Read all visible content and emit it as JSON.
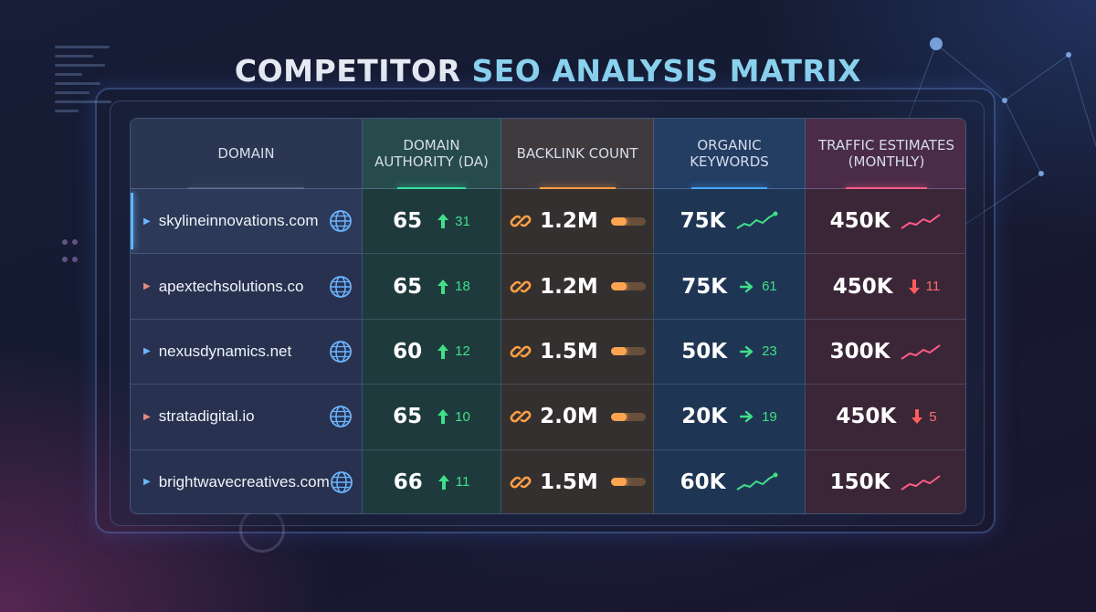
{
  "title": {
    "part1": "COMPETITOR ",
    "part2": "SEO ANALYSIS MATRIX"
  },
  "colors": {
    "accent": "#8ad2ee",
    "up": "#3fe088",
    "down": "#ff6d6d",
    "backlink": "#ffa552",
    "keywords": "#48a6ff",
    "traffic": "#ff5c86"
  },
  "columns": [
    {
      "label": "DOMAIN"
    },
    {
      "label": "DOMAIN AUTHORITY (DA)"
    },
    {
      "label": "BACKLINK COUNT"
    },
    {
      "label": "ORGANIC KEYWORDS"
    },
    {
      "label": "TRAFFIC ESTIMATES (MONTHLY)"
    }
  ],
  "rows": [
    {
      "domain": "skylineinnovations.com",
      "domain_icon": "globe-icon",
      "selected": true,
      "da": "65",
      "da_trend": "up",
      "da_delta": "31",
      "backlinks": "1.2M",
      "backlink_icon": "link-icon",
      "backlink_meter": 0.45,
      "keywords": "75K",
      "keywords_trend": "sparkline-up",
      "keywords_delta": "",
      "traffic": "450K",
      "traffic_trend": "sparkline-up",
      "traffic_delta": ""
    },
    {
      "domain": "apextechsolutions.co",
      "domain_icon": "globe-icon",
      "selected": false,
      "da": "65",
      "da_trend": "up",
      "da_delta": "18",
      "backlinks": "1.2M",
      "backlink_icon": "link-icon",
      "backlink_meter": 0.45,
      "keywords": "75K",
      "keywords_trend": "right-arrow",
      "keywords_delta": "61",
      "traffic": "450K",
      "traffic_trend": "down",
      "traffic_delta": "11"
    },
    {
      "domain": "nexusdynamics.net",
      "domain_icon": "globe-icon",
      "selected": false,
      "da": "60",
      "da_trend": "up",
      "da_delta": "12",
      "backlinks": "1.5M",
      "backlink_icon": "link-icon",
      "backlink_meter": 0.45,
      "keywords": "50K",
      "keywords_trend": "right-arrow",
      "keywords_delta": "23",
      "traffic": "300K",
      "traffic_trend": "sparkline-up",
      "traffic_delta": ""
    },
    {
      "domain": "stratadigital.io",
      "domain_icon": "globe-icon",
      "selected": false,
      "da": "65",
      "da_trend": "up",
      "da_delta": "10",
      "backlinks": "2.0M",
      "backlink_icon": "link-icon",
      "backlink_meter": 0.45,
      "keywords": "20K",
      "keywords_trend": "right-arrow",
      "keywords_delta": "19",
      "traffic": "450K",
      "traffic_trend": "down",
      "traffic_delta": "5"
    },
    {
      "domain": "brightwavecreatives.com",
      "domain_icon": "globe-icon",
      "selected": false,
      "da": "66",
      "da_trend": "up",
      "da_delta": "11",
      "backlinks": "1.5M",
      "backlink_icon": "link-icon",
      "backlink_meter": 0.45,
      "keywords": "60K",
      "keywords_trend": "sparkline-up",
      "keywords_delta": "",
      "traffic": "150K",
      "traffic_trend": "sparkline-up",
      "traffic_delta": ""
    }
  ]
}
